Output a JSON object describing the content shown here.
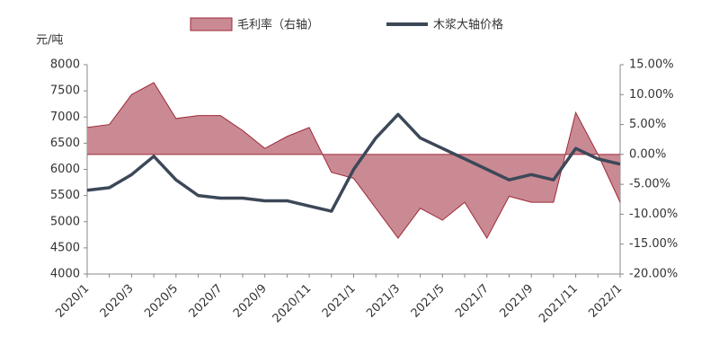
{
  "chart_data": {
    "type": "area-line",
    "y_label": "元/吨",
    "categories": [
      "2020/1",
      null,
      "2020/3",
      null,
      "2020/5",
      null,
      "2020/7",
      null,
      "2020/9",
      null,
      "2020/11",
      null,
      "2021/1",
      null,
      "2021/3",
      null,
      "2021/5",
      null,
      "2021/7",
      null,
      "2021/9",
      null,
      "2021/11",
      null,
      "2022/1"
    ],
    "series": [
      {
        "name": "毛利率（右轴）",
        "type": "area",
        "axis": "y2",
        "color": "#c98a93",
        "stroke": "#9e2a3a",
        "values": [
          4.5,
          5,
          10,
          12,
          6,
          6.5,
          6.5,
          4,
          1,
          3,
          4.5,
          -3,
          -4,
          -9,
          -14,
          -9,
          -11,
          -8,
          -14,
          -7,
          -8,
          -8,
          7,
          0,
          -8
        ]
      },
      {
        "name": "木浆大轴价格",
        "type": "line",
        "color": "#3c4858",
        "values": [
          5600,
          5650,
          5900,
          6250,
          5800,
          5500,
          5450,
          5450,
          5400,
          5400,
          5300,
          5200,
          6000,
          6600,
          7050,
          6600,
          6400,
          6200,
          6000,
          5800,
          5900,
          5800,
          6400,
          6200,
          6100
        ]
      }
    ],
    "ylim": [
      4000,
      8000
    ],
    "yticks": [
      4000,
      4500,
      5000,
      5500,
      6000,
      6500,
      7000,
      7500,
      8000
    ],
    "y2lim": [
      -20,
      15
    ],
    "y2ticks": [
      {
        "value": -20,
        "label": "-20.00%"
      },
      {
        "value": -15,
        "label": "-15.00%"
      },
      {
        "value": -10,
        "label": "-10.00%"
      },
      {
        "value": -5,
        "label": "-5.00%"
      },
      {
        "value": 0,
        "label": "0.00%"
      },
      {
        "value": 5,
        "label": "5.00%"
      },
      {
        "value": 10,
        "label": "10.00%"
      },
      {
        "value": 15,
        "label": "15.00%"
      }
    ]
  }
}
